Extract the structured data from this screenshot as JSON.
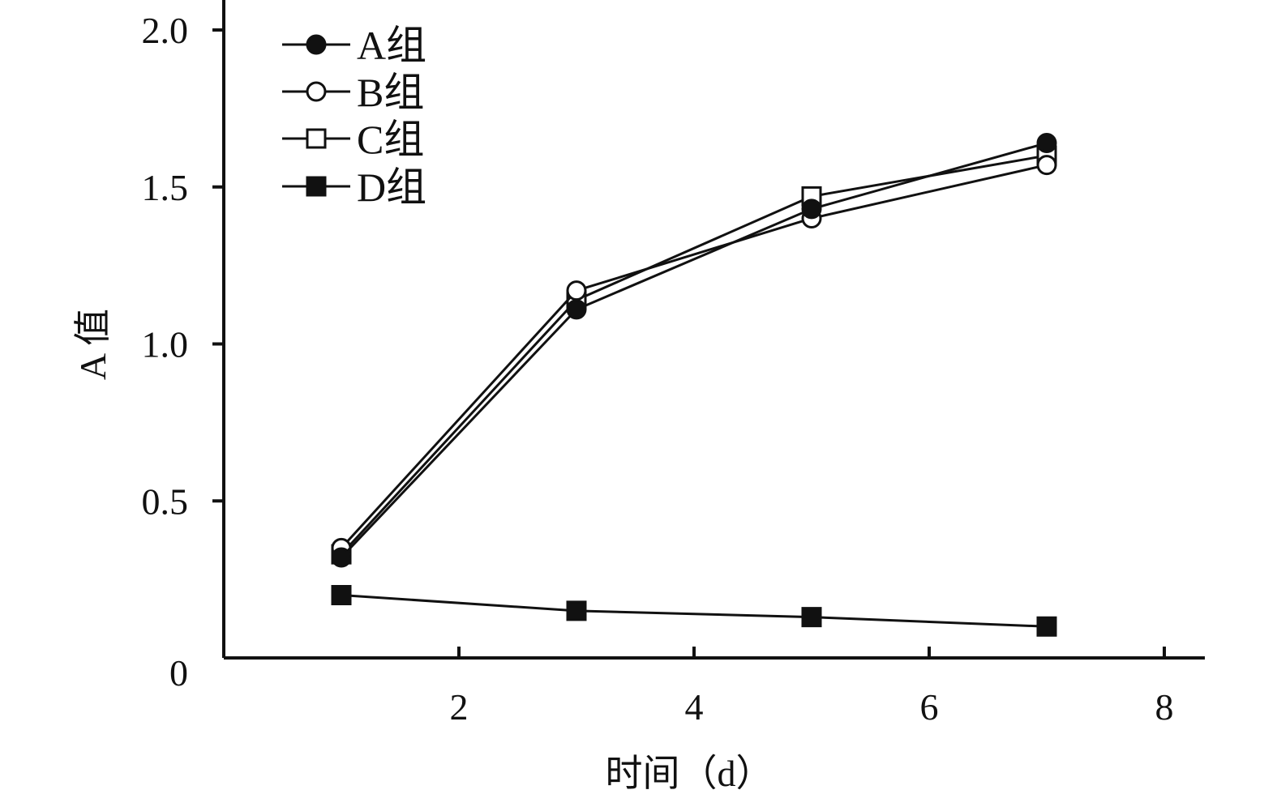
{
  "chart_data": {
    "type": "line",
    "title": "",
    "xlabel": "时间（d）",
    "ylabel": "A 值",
    "xlim": [
      0,
      8.5
    ],
    "ylim": [
      0,
      2.1
    ],
    "xticks": [
      2,
      4,
      6,
      8
    ],
    "xtick_labels": [
      "2",
      "4",
      "6",
      "8"
    ],
    "yticks": [
      0,
      0.5,
      1.0,
      1.5,
      2.0
    ],
    "ytick_labels": [
      "0",
      "0.5",
      "1.0",
      "1.5",
      "2.0"
    ],
    "grid": false,
    "legend_position": "top-left",
    "series": [
      {
        "name": "A组",
        "marker": "filled-circle",
        "x": [
          1,
          3,
          5,
          7
        ],
        "y": [
          0.32,
          1.11,
          1.43,
          1.64
        ]
      },
      {
        "name": "B组",
        "marker": "open-circle",
        "x": [
          1,
          3,
          5,
          7
        ],
        "y": [
          0.35,
          1.17,
          1.4,
          1.57
        ]
      },
      {
        "name": "C组",
        "marker": "open-square",
        "x": [
          1,
          3,
          5,
          7
        ],
        "y": [
          0.33,
          1.14,
          1.47,
          1.6
        ]
      },
      {
        "name": "D组",
        "marker": "filled-square",
        "x": [
          1,
          3,
          5,
          7
        ],
        "y": [
          0.2,
          0.15,
          0.13,
          0.1
        ]
      }
    ]
  }
}
